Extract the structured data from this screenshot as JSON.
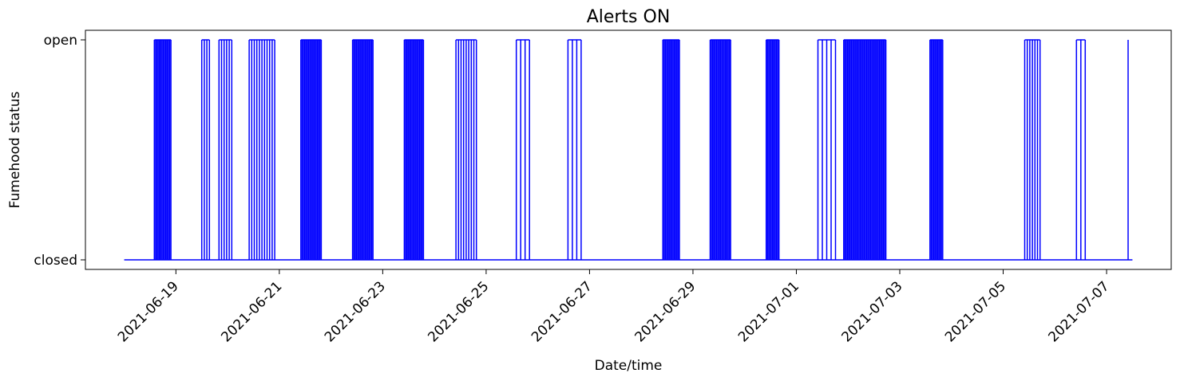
{
  "chart_data": {
    "type": "line",
    "title": "Alerts ON",
    "xlabel": "Date/time",
    "ylabel": "Fumehood status",
    "x_axis_type": "date",
    "xlim": [
      "2021-06-17T06:00",
      "2021-07-08T06:00"
    ],
    "x_ticks": [
      "2021-06-19",
      "2021-06-21",
      "2021-06-23",
      "2021-06-25",
      "2021-06-27",
      "2021-06-29",
      "2021-07-01",
      "2021-07-03",
      "2021-07-05",
      "2021-07-07"
    ],
    "y_categories": [
      "closed",
      "open"
    ],
    "y_ticks": [
      "closed",
      "open"
    ],
    "grid": false,
    "legend": "none",
    "line_color": "#0000ff",
    "series": [
      {
        "values_note_x": "timestamps",
        "x": [
          "2021-06-18T00:00",
          "2021-07-07T12:00"
        ],
        "y": [
          "closed",
          "closed"
        ]
      }
    ],
    "open_bursts": [
      {
        "start": "2021-06-18T14:00",
        "end": "2021-06-18T22:00",
        "density": "dense"
      },
      {
        "start": "2021-06-19T12:00",
        "end": "2021-06-19T16:00",
        "density": "medium"
      },
      {
        "start": "2021-06-19T20:00",
        "end": "2021-06-20T02:00",
        "density": "medium"
      },
      {
        "start": "2021-06-20T10:00",
        "end": "2021-06-20T23:00",
        "density": "medium"
      },
      {
        "start": "2021-06-21T10:00",
        "end": "2021-06-21T20:00",
        "density": "dense"
      },
      {
        "start": "2021-06-22T10:00",
        "end": "2021-06-22T20:00",
        "density": "dense"
      },
      {
        "start": "2021-06-23T10:00",
        "end": "2021-06-23T19:00",
        "density": "dense"
      },
      {
        "start": "2021-06-24T10:00",
        "end": "2021-06-24T20:00",
        "density": "medium"
      },
      {
        "start": "2021-06-25T14:00",
        "end": "2021-06-25T22:00",
        "density": "sparse"
      },
      {
        "start": "2021-06-26T14:00",
        "end": "2021-06-26T22:00",
        "density": "sparse"
      },
      {
        "start": "2021-06-28T10:00",
        "end": "2021-06-28T18:00",
        "density": "dense"
      },
      {
        "start": "2021-06-29T08:00",
        "end": "2021-06-29T18:00",
        "density": "dense"
      },
      {
        "start": "2021-06-30T10:00",
        "end": "2021-06-30T16:00",
        "density": "dense"
      },
      {
        "start": "2021-07-01T10:00",
        "end": "2021-07-01T20:00",
        "density": "sparse"
      },
      {
        "start": "2021-07-01T22:00",
        "end": "2021-07-02T18:00",
        "density": "dense"
      },
      {
        "start": "2021-07-03T14:00",
        "end": "2021-07-03T20:00",
        "density": "dense"
      },
      {
        "start": "2021-07-05T10:00",
        "end": "2021-07-05T18:00",
        "density": "medium"
      },
      {
        "start": "2021-07-06T10:00",
        "end": "2021-07-06T16:00",
        "density": "sparse"
      },
      {
        "start": "2021-07-07T10:00",
        "end": "2021-07-07T11:00",
        "density": "single"
      }
    ]
  }
}
